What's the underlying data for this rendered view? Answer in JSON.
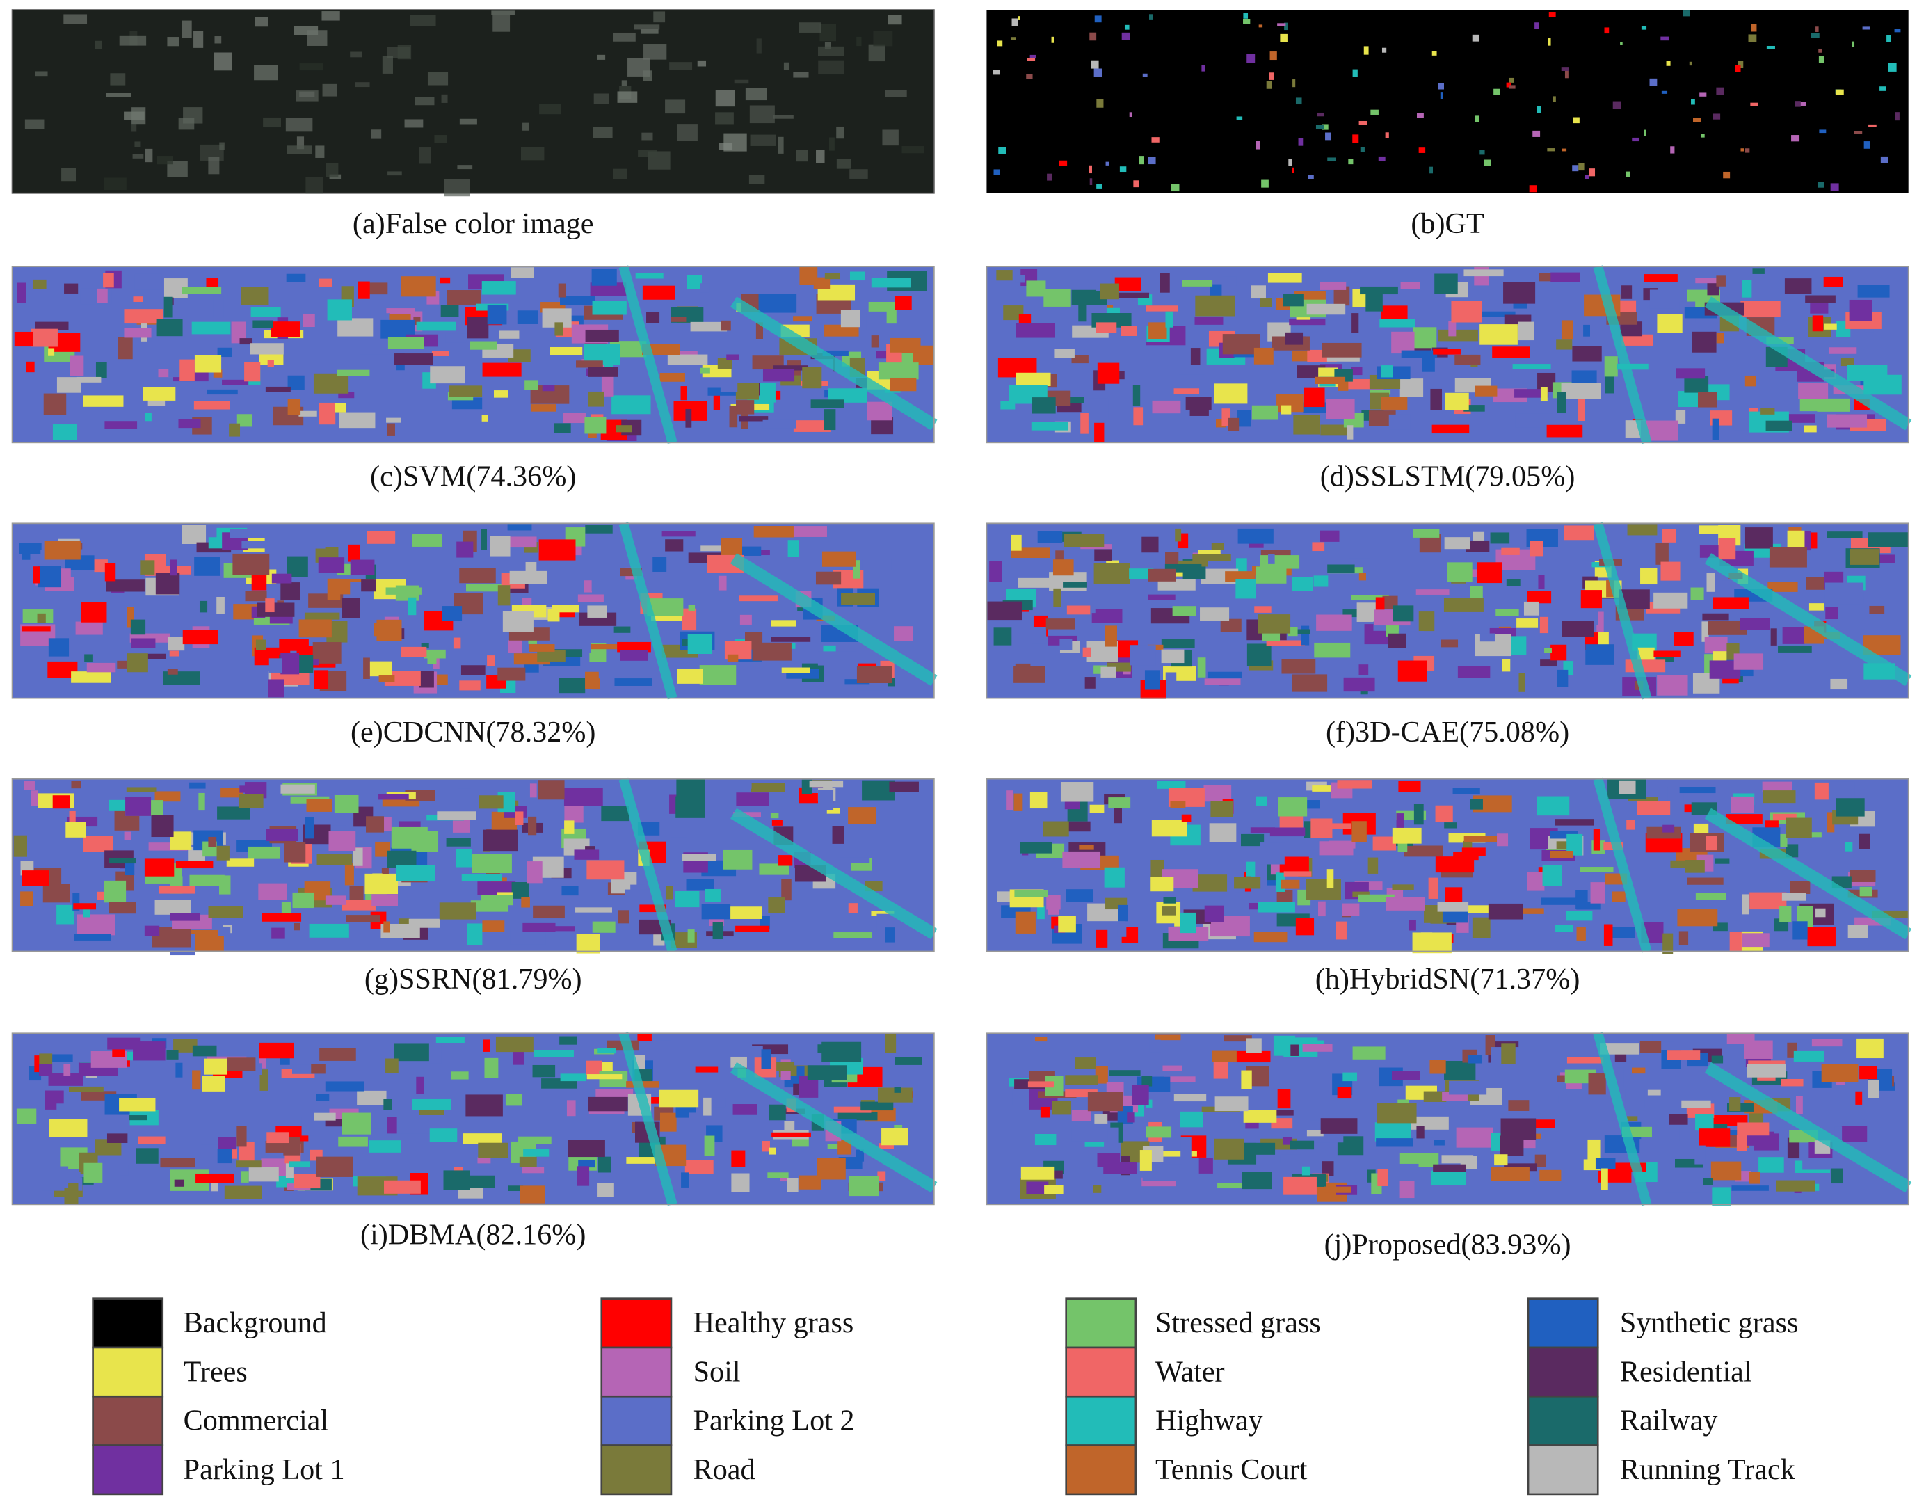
{
  "panels": [
    {
      "caption": "(a)False color image"
    },
    {
      "caption": "(b)GT"
    },
    {
      "caption": "(c)SVM(74.36%)"
    },
    {
      "caption": "(d)SSLSTM(79.05%)"
    },
    {
      "caption": "(e)CDCNN(78.32%)"
    },
    {
      "caption": "(f)3D-CAE(75.08%)"
    },
    {
      "caption": "(g)SSRN(81.79%)"
    },
    {
      "caption": "(h)HybridSN(71.37%)"
    },
    {
      "caption": "(i)DBMA(82.16%)"
    },
    {
      "caption": "(j)Proposed(83.93%)"
    }
  ],
  "legend": [
    {
      "label": "Background",
      "color": "#000000"
    },
    {
      "label": "Trees",
      "color": "#e8e44c"
    },
    {
      "label": "Commercial",
      "color": "#8b4a4a"
    },
    {
      "label": "Parking Lot 1",
      "color": "#7030a0"
    },
    {
      "label": "Healthy grass",
      "color": "#ff0000"
    },
    {
      "label": "Soil",
      "color": "#b565b5"
    },
    {
      "label": "Parking Lot 2",
      "color": "#5b6ec8"
    },
    {
      "label": "Road",
      "color": "#7a7a3a"
    },
    {
      "label": "Stressed grass",
      "color": "#74c46a"
    },
    {
      "label": "Water",
      "color": "#f06666"
    },
    {
      "label": "Highway",
      "color": "#22bcb8"
    },
    {
      "label": "Tennis Court",
      "color": "#c0652a"
    },
    {
      "label": "Synthetic grass",
      "color": "#2060c0"
    },
    {
      "label": "Residential",
      "color": "#5a2a60"
    },
    {
      "label": "Railway",
      "color": "#1a6a6a"
    },
    {
      "label": "Running Track",
      "color": "#b8b8b8"
    }
  ]
}
